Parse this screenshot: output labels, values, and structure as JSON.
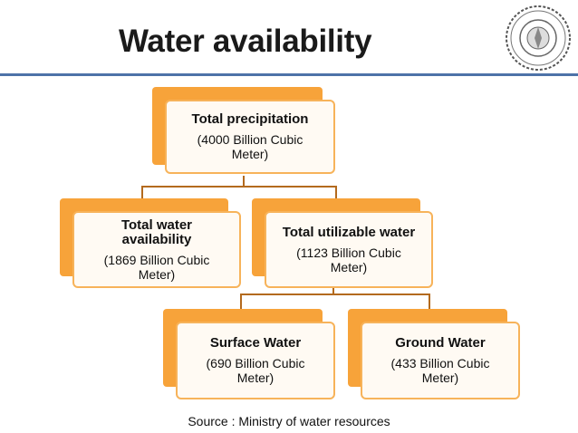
{
  "slide": {
    "title": "Water availability",
    "source": "Source : Ministry of  water resources"
  },
  "nodes": {
    "total_precipitation": {
      "title": "Total precipitation",
      "sub": "(4000 Billion Cubic Meter)"
    },
    "total_water_availability": {
      "title": "Total  water availability",
      "sub": "(1869 Billion Cubic Meter)"
    },
    "total_utilizable_water": {
      "title": "Total utilizable water",
      "sub": "(1123 Billion Cubic Meter)"
    },
    "surface_water": {
      "title": "Surface Water",
      "sub": "(690 Billion Cubic Meter)"
    },
    "ground_water": {
      "title": "Ground Water",
      "sub": "(433 Billion Cubic Meter)"
    }
  },
  "colors": {
    "accent_orange": "#f7a33a",
    "box_fill": "#fffaf3",
    "rule_blue": "#4d73a8",
    "connector": "#b36a1e"
  },
  "logo": {
    "icon": "institute-seal-icon"
  }
}
